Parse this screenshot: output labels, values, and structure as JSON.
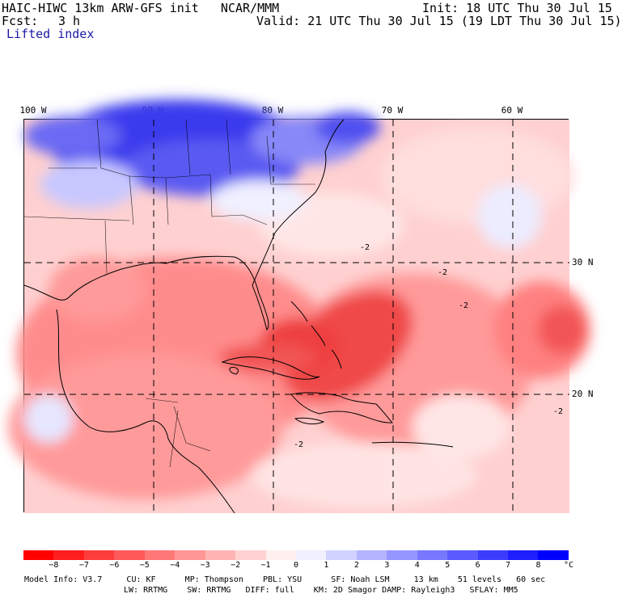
{
  "header": {
    "title_left": "HAIC-HIWC 13km ARW-GFS init   NCAR/MMM",
    "init": "Init: 18 UTC Thu 30 Jul 15",
    "fcst_label": "Fcst:",
    "fcst_value": "3 h",
    "valid": "Valid: 21 UTC Thu 30 Jul 15 (19 LDT Thu 30 Jul 15)",
    "field_name": "Lifted index"
  },
  "map": {
    "lon_labels": [
      "100 W",
      "90 W",
      "80 W",
      "70 W",
      "60 W"
    ],
    "lat_labels": [
      "30 N",
      "20 N"
    ],
    "contour_labels": [
      "-2",
      "-2",
      "-2",
      "-2",
      "-2"
    ],
    "colors": {
      "cold_strong": "#1010e6",
      "cold_mid": "#6c6cf5",
      "cold_light": "#c8c8ff",
      "neutral": "#ffffff",
      "warm_light": "#ffc8c8",
      "warm_mid": "#ff8f8f",
      "warm_strong": "#ee3a3a",
      "land_line": "#000000"
    }
  },
  "colorbar": {
    "colors": [
      "#ff0000",
      "#ff1e1e",
      "#ff3c3c",
      "#ff5a5a",
      "#ff7878",
      "#ff9696",
      "#ffb4b4",
      "#ffd2d2",
      "#fff0f0",
      "#f0f0ff",
      "#d2d2ff",
      "#b4b4ff",
      "#9696ff",
      "#7878ff",
      "#5a5aff",
      "#3c3cff",
      "#1e1eff",
      "#0000ff"
    ],
    "labels": [
      "−8",
      "−7",
      "−6",
      "−5",
      "−4",
      "−3",
      "−2",
      "−1",
      "0",
      "1",
      "2",
      "3",
      "4",
      "5",
      "6",
      "7",
      "8"
    ],
    "unit": "°C"
  },
  "model_info": {
    "line1": "Model Info: V3.7     CU: KF      MP: Thompson    PBL: YSU      SF: Noah LSM     13 km    51 levels   60 sec",
    "line2": "LW: RRTMG    SW: RRTMG   DIFF: full    KM: 2D Smagor DAMP: Rayleigh3   SFLAY: MM5"
  }
}
